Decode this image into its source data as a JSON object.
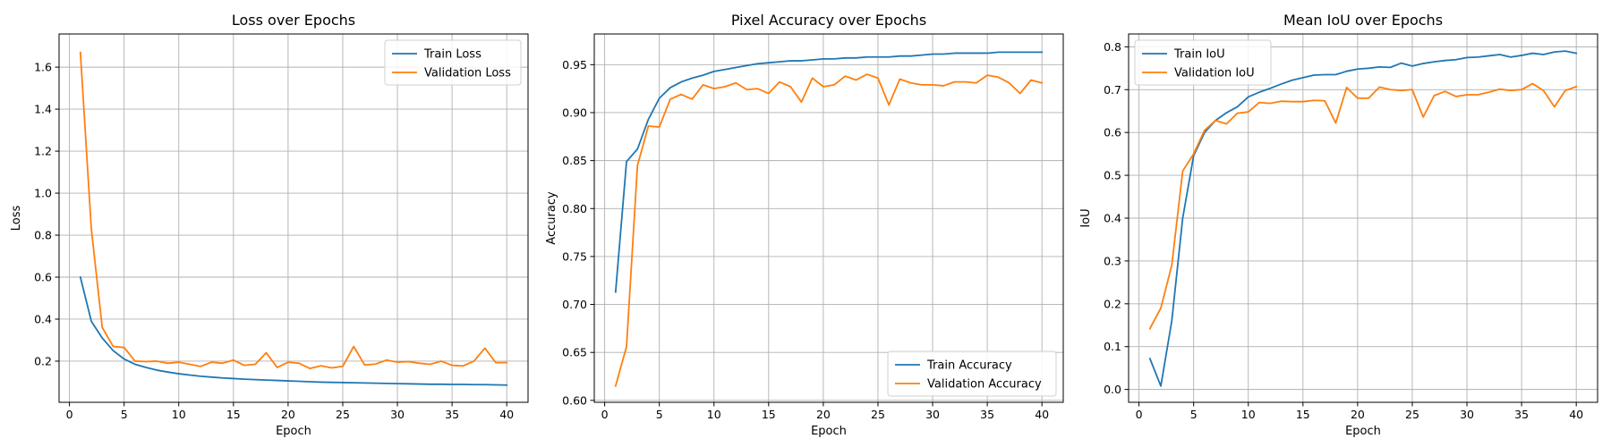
{
  "colors": {
    "train": "#1f77b4",
    "validation": "#ff7f0e",
    "grid": "#b0b0b0",
    "axes": "#000000"
  },
  "chart_data": [
    {
      "type": "line",
      "title": "Loss over Epochs",
      "xlabel": "Epoch",
      "ylabel": "Loss",
      "xlim": [
        -0.95,
        41.95
      ],
      "ylim": [
        0.004,
        1.758
      ],
      "xticks": [
        0,
        5,
        10,
        15,
        20,
        25,
        30,
        35,
        40
      ],
      "yticks": [
        0.2,
        0.4,
        0.6,
        0.8,
        1.0,
        1.2,
        1.4,
        1.6
      ],
      "ytick_labels": [
        "0.2",
        "0.4",
        "0.6",
        "0.8",
        "1.0",
        "1.2",
        "1.4",
        "1.6"
      ],
      "grid": true,
      "legend_position": "upper right",
      "x": [
        1,
        2,
        3,
        4,
        5,
        6,
        7,
        8,
        9,
        10,
        11,
        12,
        13,
        14,
        15,
        16,
        17,
        18,
        19,
        20,
        21,
        22,
        23,
        24,
        25,
        26,
        27,
        28,
        29,
        30,
        31,
        32,
        33,
        34,
        35,
        36,
        37,
        38,
        39,
        40
      ],
      "series": [
        {
          "name": "Train Loss",
          "color": "#1f77b4",
          "values": [
            0.6,
            0.39,
            0.31,
            0.25,
            0.21,
            0.185,
            0.17,
            0.157,
            0.148,
            0.14,
            0.134,
            0.128,
            0.124,
            0.12,
            0.117,
            0.114,
            0.112,
            0.11,
            0.108,
            0.106,
            0.104,
            0.102,
            0.1,
            0.099,
            0.098,
            0.097,
            0.096,
            0.095,
            0.094,
            0.093,
            0.092,
            0.091,
            0.09,
            0.09,
            0.089,
            0.089,
            0.088,
            0.088,
            0.087,
            0.086
          ]
        },
        {
          "name": "Validation Loss",
          "color": "#ff7f0e",
          "values": [
            1.67,
            0.83,
            0.36,
            0.27,
            0.265,
            0.2,
            0.198,
            0.2,
            0.19,
            0.195,
            0.185,
            0.175,
            0.195,
            0.19,
            0.205,
            0.18,
            0.185,
            0.24,
            0.17,
            0.195,
            0.19,
            0.165,
            0.178,
            0.168,
            0.175,
            0.27,
            0.182,
            0.186,
            0.205,
            0.195,
            0.198,
            0.19,
            0.185,
            0.2,
            0.18,
            0.177,
            0.2,
            0.262,
            0.193,
            0.193
          ]
        }
      ]
    },
    {
      "type": "line",
      "title": "Pixel Accuracy over Epochs",
      "xlabel": "Epoch",
      "ylabel": "Accuracy",
      "xlim": [
        -0.95,
        41.95
      ],
      "ylim": [
        0.598,
        0.982
      ],
      "xticks": [
        0,
        5,
        10,
        15,
        20,
        25,
        30,
        35,
        40
      ],
      "yticks": [
        0.6,
        0.65,
        0.7,
        0.75,
        0.8,
        0.85,
        0.9,
        0.95
      ],
      "ytick_labels": [
        "0.60",
        "0.65",
        "0.70",
        "0.75",
        "0.80",
        "0.85",
        "0.90",
        "0.95"
      ],
      "grid": true,
      "legend_position": "lower right",
      "x": [
        1,
        2,
        3,
        4,
        5,
        6,
        7,
        8,
        9,
        10,
        11,
        12,
        13,
        14,
        15,
        16,
        17,
        18,
        19,
        20,
        21,
        22,
        23,
        24,
        25,
        26,
        27,
        28,
        29,
        30,
        31,
        32,
        33,
        34,
        35,
        36,
        37,
        38,
        39,
        40
      ],
      "series": [
        {
          "name": "Train Accuracy",
          "color": "#1f77b4",
          "values": [
            0.713,
            0.849,
            0.862,
            0.893,
            0.915,
            0.926,
            0.932,
            0.936,
            0.939,
            0.943,
            0.945,
            0.947,
            0.949,
            0.951,
            0.952,
            0.953,
            0.954,
            0.954,
            0.955,
            0.956,
            0.956,
            0.957,
            0.957,
            0.958,
            0.958,
            0.958,
            0.959,
            0.959,
            0.96,
            0.961,
            0.961,
            0.962,
            0.962,
            0.962,
            0.962,
            0.963,
            0.963,
            0.963,
            0.963,
            0.963
          ]
        },
        {
          "name": "Validation Accuracy",
          "color": "#ff7f0e",
          "values": [
            0.615,
            0.656,
            0.845,
            0.886,
            0.885,
            0.914,
            0.919,
            0.914,
            0.929,
            0.925,
            0.927,
            0.931,
            0.924,
            0.925,
            0.92,
            0.932,
            0.927,
            0.911,
            0.936,
            0.927,
            0.929,
            0.938,
            0.934,
            0.94,
            0.936,
            0.908,
            0.935,
            0.931,
            0.929,
            0.929,
            0.928,
            0.932,
            0.932,
            0.931,
            0.939,
            0.937,
            0.931,
            0.92,
            0.934,
            0.931
          ]
        }
      ]
    },
    {
      "type": "line",
      "title": "Mean IoU over Epochs",
      "xlabel": "Epoch",
      "ylabel": "IoU",
      "xlim": [
        -0.95,
        41.95
      ],
      "ylim": [
        -0.03,
        0.83
      ],
      "xticks": [
        0,
        5,
        10,
        15,
        20,
        25,
        30,
        35,
        40
      ],
      "yticks": [
        0.0,
        0.1,
        0.2,
        0.3,
        0.4,
        0.5,
        0.6,
        0.7,
        0.8
      ],
      "ytick_labels": [
        "0.0",
        "0.1",
        "0.2",
        "0.3",
        "0.4",
        "0.5",
        "0.6",
        "0.7",
        "0.8"
      ],
      "grid": true,
      "legend_position": "upper left",
      "x": [
        1,
        2,
        3,
        4,
        5,
        6,
        7,
        8,
        9,
        10,
        11,
        12,
        13,
        14,
        15,
        16,
        17,
        18,
        19,
        20,
        21,
        22,
        23,
        24,
        25,
        26,
        27,
        28,
        29,
        30,
        31,
        32,
        33,
        34,
        35,
        36,
        37,
        38,
        39,
        40
      ],
      "series": [
        {
          "name": "Train IoU",
          "color": "#1f77b4",
          "values": [
            0.072,
            0.008,
            0.16,
            0.4,
            0.546,
            0.6,
            0.628,
            0.646,
            0.66,
            0.683,
            0.694,
            0.703,
            0.713,
            0.722,
            0.728,
            0.734,
            0.735,
            0.735,
            0.743,
            0.748,
            0.75,
            0.753,
            0.752,
            0.762,
            0.755,
            0.761,
            0.765,
            0.768,
            0.77,
            0.775,
            0.776,
            0.779,
            0.782,
            0.776,
            0.78,
            0.785,
            0.782,
            0.788,
            0.79,
            0.785
          ]
        },
        {
          "name": "Validation IoU",
          "color": "#ff7f0e",
          "values": [
            0.142,
            0.19,
            0.29,
            0.51,
            0.55,
            0.605,
            0.628,
            0.62,
            0.645,
            0.648,
            0.67,
            0.668,
            0.673,
            0.672,
            0.672,
            0.675,
            0.674,
            0.622,
            0.705,
            0.68,
            0.68,
            0.706,
            0.7,
            0.698,
            0.7,
            0.636,
            0.686,
            0.696,
            0.684,
            0.688,
            0.688,
            0.694,
            0.701,
            0.698,
            0.7,
            0.714,
            0.698,
            0.66,
            0.698,
            0.707
          ]
        }
      ]
    }
  ]
}
